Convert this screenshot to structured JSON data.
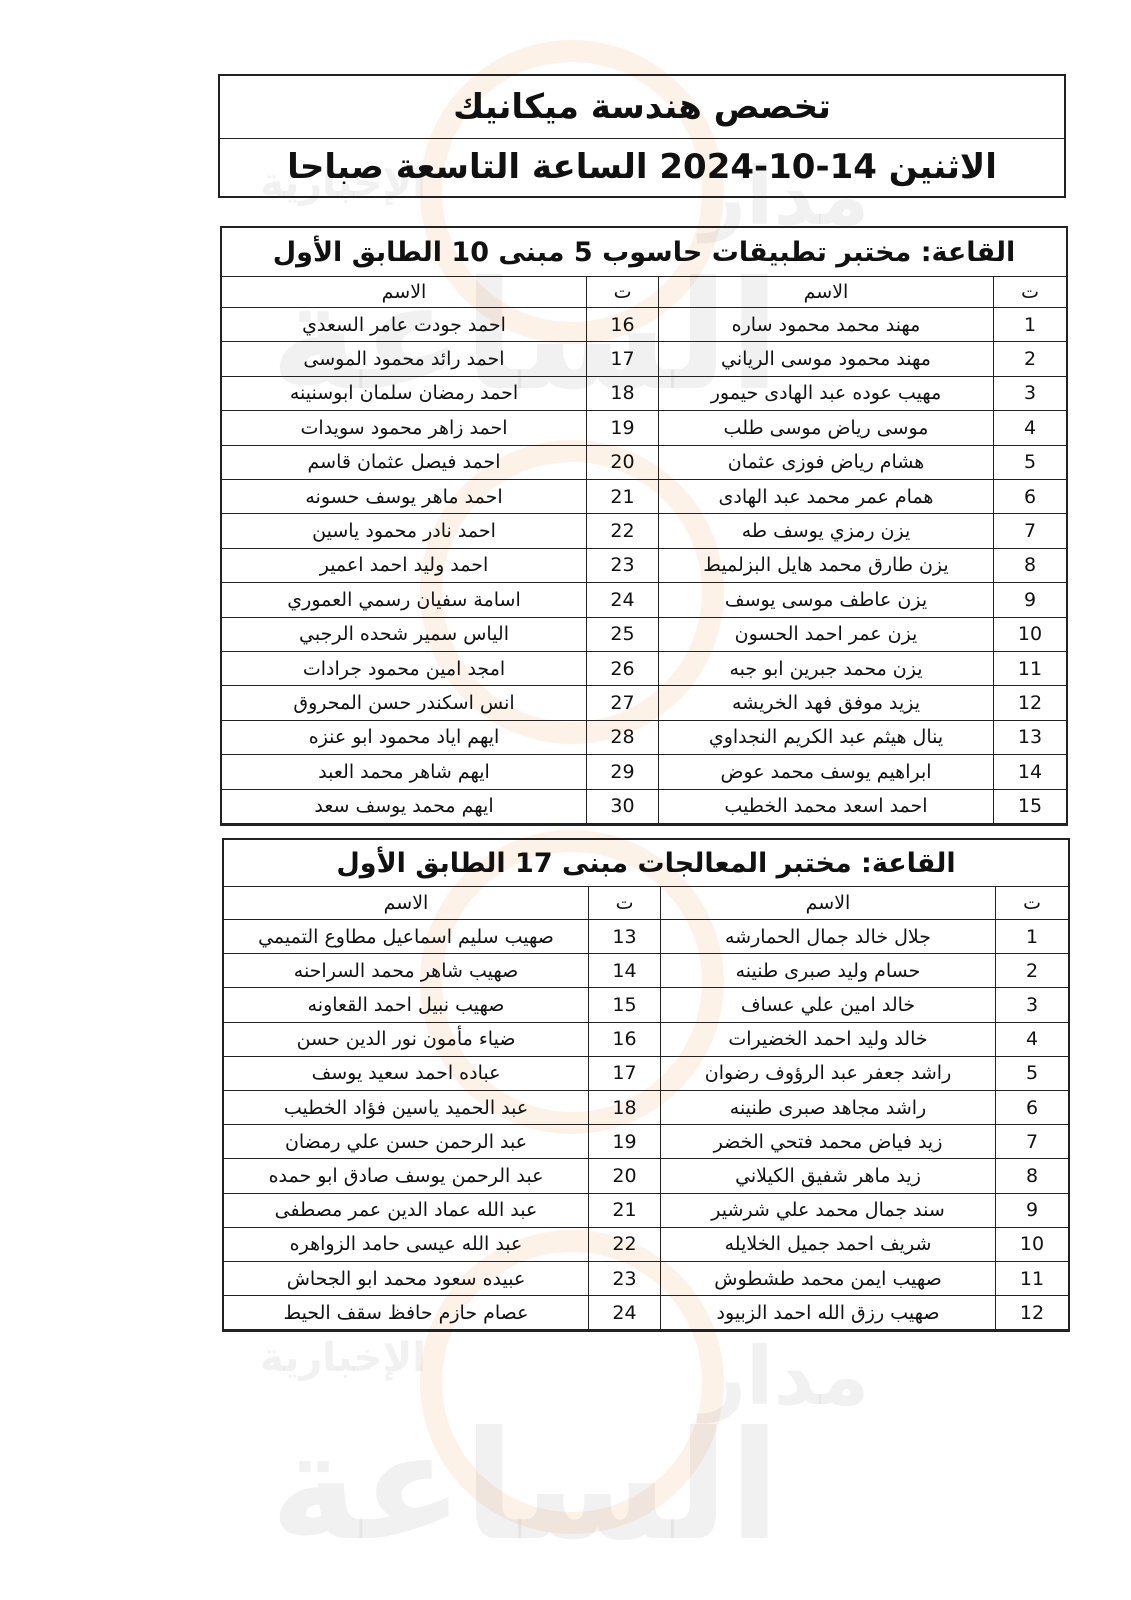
{
  "header": {
    "title": "تخصص هندسة ميكانيك",
    "subtitle": "الاثنين 14-10-2024 الساعة التاسعة صباحا"
  },
  "watermark": [
    "مدار",
    "الساعة",
    "الإخبارية"
  ],
  "tables": [
    {
      "heading": "القاعة: مختبر تطبيقات حاسوب 5 مبنى 10 الطابق الأول",
      "columns": [
        "ت",
        "الاسم",
        "ت",
        "الاسم"
      ],
      "rows": [
        [
          1,
          "مهند محمد محمود ساره",
          16,
          "احمد جودت عامر السعدي"
        ],
        [
          2,
          "مهند محمود موسى الرياني",
          17,
          "احمد رائد محمود الموسى"
        ],
        [
          3,
          "مهيب عوده عبد الهادى حيمور",
          18,
          "احمد رمضان سلمان ابوسنينه"
        ],
        [
          4,
          "موسى رياض موسى طلب",
          19,
          "احمد زاهر محمود سويدات"
        ],
        [
          5,
          "هشام رياض فوزى عثمان",
          20,
          "احمد فيصل عثمان قاسم"
        ],
        [
          6,
          "همام عمر محمد عبد الهادى",
          21,
          "احمد ماهر يوسف حسونه"
        ],
        [
          7,
          "يزن رمزي يوسف طه",
          22,
          "احمد نادر محمود ياسين"
        ],
        [
          8,
          "يزن طارق محمد هايل البزلميط",
          23,
          "احمد وليد احمد اعمير"
        ],
        [
          9,
          "يزن عاطف موسى يوسف",
          24,
          "اسامة سفيان رسمي العموري"
        ],
        [
          10,
          "يزن عمر احمد الحسون",
          25,
          "الياس سمير شحده الرجبي"
        ],
        [
          11,
          "يزن محمد جبرين ابو جبه",
          26,
          "امجد امين محمود جرادات"
        ],
        [
          12,
          "يزيد موفق فهد الخريشه",
          27,
          "انس اسكندر حسن المحروق"
        ],
        [
          13,
          "ينال هيثم عبد الكريم النجداوي",
          28,
          "ايهم اياد محمود ابو عنزه"
        ],
        [
          14,
          "ابراهيم يوسف محمد عوض",
          29,
          "ايهم شاهر محمد العبد"
        ],
        [
          15,
          "احمد اسعد محمد الخطيب",
          30,
          "ايهم محمد يوسف سعد"
        ]
      ]
    },
    {
      "heading": "القاعة: مختبر المعالجات مبنى 17 الطابق الأول",
      "columns": [
        "ت",
        "الاسم",
        "ت",
        "الاسم"
      ],
      "rows": [
        [
          1,
          "جلال خالد جمال الحمارشه",
          13,
          "صهيب سليم اسماعيل مطاوع التميمي"
        ],
        [
          2,
          "حسام وليد صبرى طنينه",
          14,
          "صهيب شاهر محمد السراحنه"
        ],
        [
          3,
          "خالد امين علي عساف",
          15,
          "صهيب نبيل احمد القعاونه"
        ],
        [
          4,
          "خالد وليد احمد الخضيرات",
          16,
          "ضياء مأمون نور الدين حسن"
        ],
        [
          5,
          "راشد جعفر عبد الرؤوف رضوان",
          17,
          "عباده احمد سعيد يوسف"
        ],
        [
          6,
          "راشد مجاهد صبرى طنينه",
          18,
          "عبد الحميد ياسين فؤاد الخطيب"
        ],
        [
          7,
          "زيد فياض محمد فتحي الخضر",
          19,
          "عبد الرحمن حسن علي رمضان"
        ],
        [
          8,
          "زيد ماهر شفيق الكيلاني",
          20,
          "عبد الرحمن يوسف صادق ابو حمده"
        ],
        [
          9,
          "سند جمال محمد علي شرشير",
          21,
          "عبد الله عماد الدين عمر مصطفى"
        ],
        [
          10,
          "شريف احمد جميل الخلايله",
          22,
          "عبد الله عيسى حامد الزواهره"
        ],
        [
          11,
          "صهيب ايمن محمد طشطوش",
          23,
          "عبيده سعود محمد ابو الجحاش"
        ],
        [
          12,
          "صهيب رزق الله احمد الزبيود",
          24,
          "عصام حازم حافظ سقف الحيط"
        ]
      ]
    }
  ]
}
